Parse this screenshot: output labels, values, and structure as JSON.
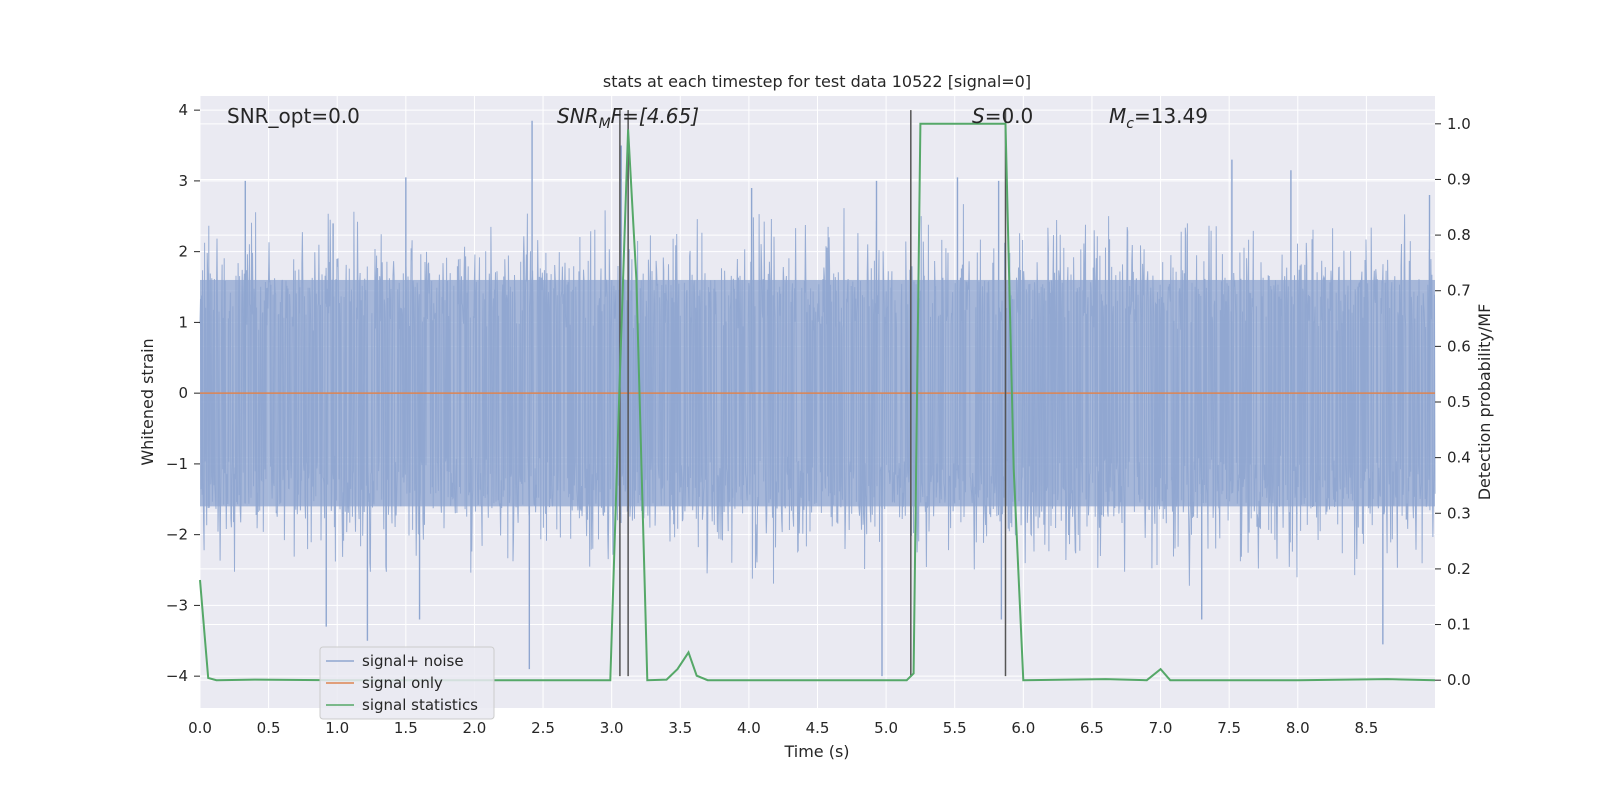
{
  "chart_data": {
    "type": "line",
    "title": "stats at each timestep for test data 10522 [signal=0]",
    "xlabel": "Time (s)",
    "ylabel": "Whitened strain",
    "y2label": "Detection probability/MF",
    "xlim": [
      0.0,
      9.0
    ],
    "ylim": [
      -4.45,
      4.2
    ],
    "y2lim": [
      -0.05,
      1.05
    ],
    "xticks": [
      "0.0",
      "0.5",
      "1.0",
      "1.5",
      "2.0",
      "2.5",
      "3.0",
      "3.5",
      "4.0",
      "4.5",
      "5.0",
      "5.5",
      "6.0",
      "6.5",
      "7.0",
      "7.5",
      "8.0",
      "8.5"
    ],
    "xtick_values": [
      0.0,
      0.5,
      1.0,
      1.5,
      2.0,
      2.5,
      3.0,
      3.5,
      4.0,
      4.5,
      5.0,
      5.5,
      6.0,
      6.5,
      7.0,
      7.5,
      8.0,
      8.5
    ],
    "yticks": [
      "4",
      "3",
      "2",
      "1",
      "0",
      "−1",
      "−2",
      "−3",
      "−4"
    ],
    "ytick_values": [
      4,
      3,
      2,
      1,
      0,
      -1,
      -2,
      -3,
      -4
    ],
    "y2ticks": [
      "1.0",
      "0.9",
      "0.8",
      "0.7",
      "0.6",
      "0.5",
      "0.4",
      "0.3",
      "0.2",
      "0.1",
      "0.0"
    ],
    "y2tick_values": [
      1.0,
      0.9,
      0.8,
      0.7,
      0.6,
      0.5,
      0.4,
      0.3,
      0.2,
      0.1,
      0.0
    ],
    "grid": true,
    "legend_position": "bottom-left",
    "annotations": {
      "snr_opt": "SNR_opt=0.0",
      "snr_mf_main": "SNR",
      "snr_mf_sub": "M",
      "snr_mf_tail": "F=[4.65]",
      "s_main": "S",
      "s_tail": "=0.0",
      "mc_main": "M",
      "mc_sub": "c",
      "mc_tail": "=13.49"
    },
    "series": [
      {
        "name": "signal+ noise",
        "color": "#8fa6d0",
        "axis": "left",
        "style": "noise",
        "noise_band": [
          -1.6,
          1.6
        ],
        "peaks": [
          {
            "x": 0.33,
            "y": 3.0
          },
          {
            "x": 0.97,
            "y": 2.4
          },
          {
            "x": 1.5,
            "y": 3.05
          },
          {
            "x": 2.42,
            "y": 3.85
          },
          {
            "x": 2.4,
            "y": -3.9
          },
          {
            "x": 0.92,
            "y": -3.3
          },
          {
            "x": 1.22,
            "y": -3.5
          },
          {
            "x": 1.6,
            "y": -3.2
          },
          {
            "x": 3.07,
            "y": 3.5
          },
          {
            "x": 4.02,
            "y": 2.9
          },
          {
            "x": 4.93,
            "y": 3.0
          },
          {
            "x": 4.97,
            "y": -4.0
          },
          {
            "x": 5.52,
            "y": 3.05
          },
          {
            "x": 5.82,
            "y": 3.0
          },
          {
            "x": 5.84,
            "y": -3.2
          },
          {
            "x": 7.52,
            "y": 3.3
          },
          {
            "x": 7.95,
            "y": 3.15
          },
          {
            "x": 7.3,
            "y": -3.2
          },
          {
            "x": 8.62,
            "y": -3.55
          },
          {
            "x": 8.96,
            "y": 2.8
          }
        ]
      },
      {
        "name": "signal only",
        "color": "#dd8452",
        "axis": "left",
        "x": [
          0.0,
          9.0
        ],
        "y": [
          0.0,
          0.0
        ]
      },
      {
        "name": "signal statistics",
        "color": "#55a868",
        "axis": "right",
        "x": [
          0.0,
          0.06,
          0.12,
          0.4,
          1.0,
          2.0,
          2.99,
          3.06,
          3.12,
          3.18,
          3.26,
          3.4,
          3.48,
          3.56,
          3.62,
          3.7,
          4.5,
          5.15,
          5.2,
          5.25,
          5.87,
          5.93,
          6.0,
          6.6,
          6.9,
          7.0,
          7.07,
          8.0,
          8.65,
          9.0
        ],
        "y": [
          0.18,
          0.004,
          0.0,
          0.001,
          0.0,
          0.0,
          0.0,
          0.55,
          0.99,
          0.72,
          0.0,
          0.001,
          0.02,
          0.05,
          0.008,
          0.0,
          0.0,
          0.0,
          0.012,
          1.0,
          1.0,
          0.38,
          0.0,
          0.002,
          0.0,
          0.02,
          0.0,
          0.0,
          0.002,
          0.0
        ]
      }
    ],
    "markers": {
      "color": "#555555",
      "x": [
        3.06,
        3.12,
        5.18,
        5.87
      ],
      "y_range": [
        -4.0,
        4.0
      ]
    }
  }
}
